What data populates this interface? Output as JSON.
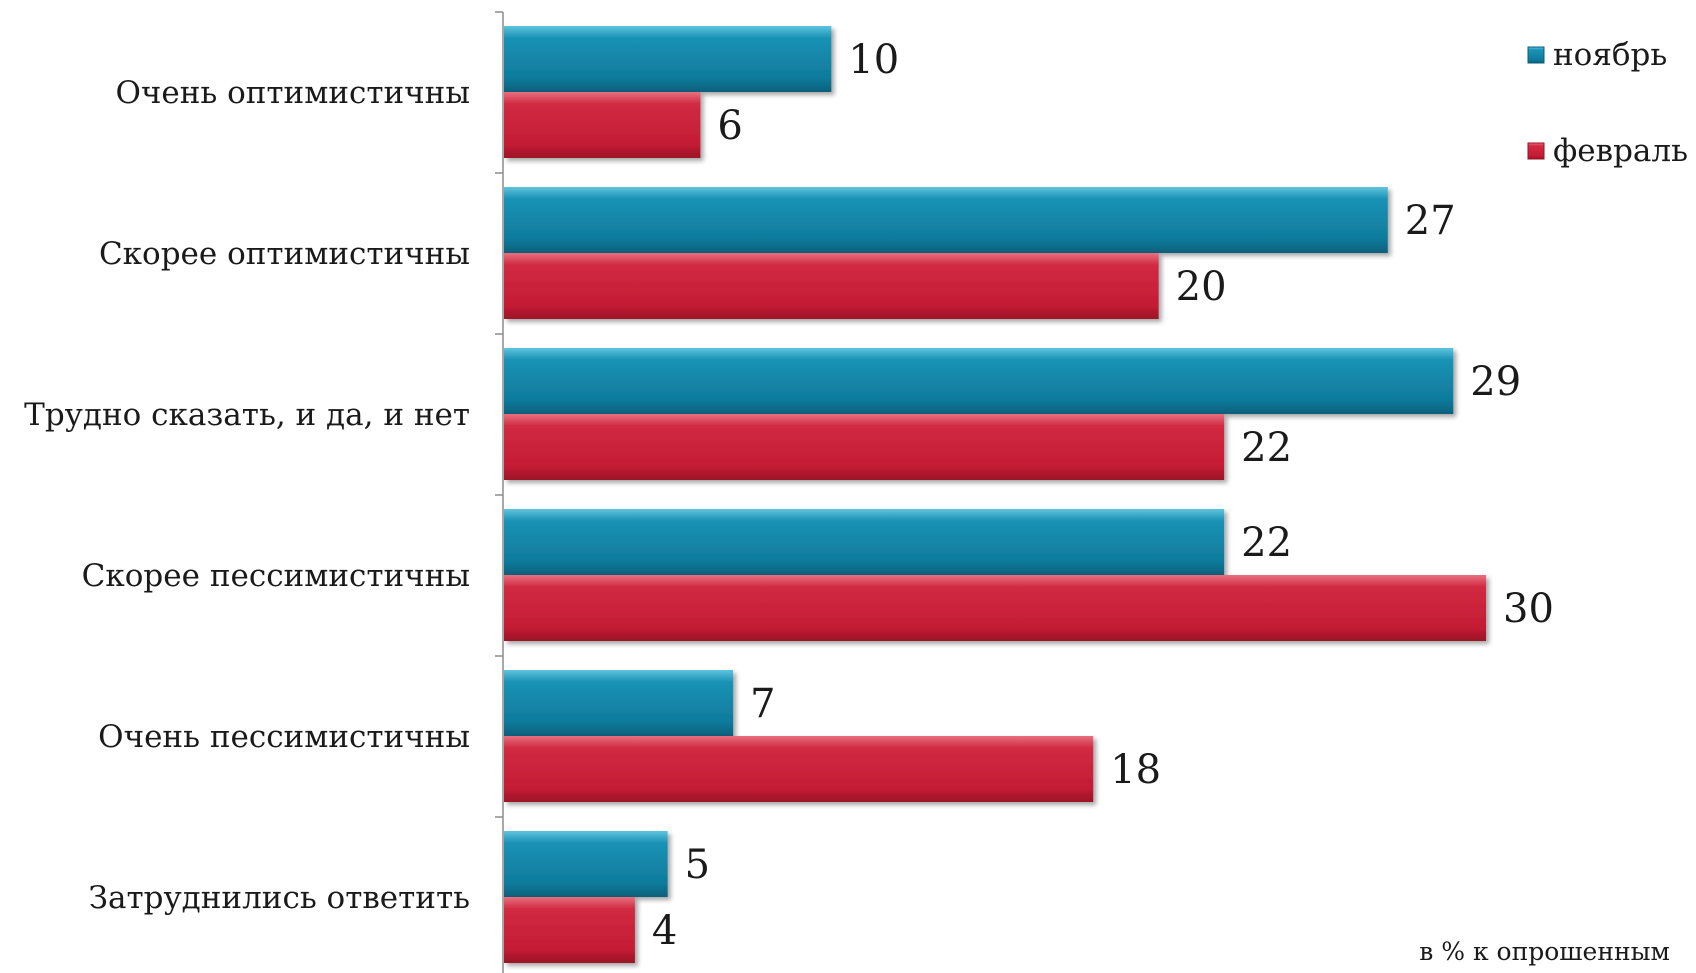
{
  "chart_data": {
    "type": "bar",
    "orientation": "horizontal",
    "categories": [
      "Очень оптимистичны",
      "Скорее оптимистичны",
      "Трудно сказать, и да, и нет",
      "Скорее пессимистичны",
      "Очень пессимистичны",
      "Затруднились ответить"
    ],
    "series": [
      {
        "name": "ноябрь",
        "color": "#1181a3",
        "values": [
          10,
          27,
          29,
          22,
          7,
          5
        ]
      },
      {
        "name": "февраль",
        "color": "#c81f37",
        "values": [
          6,
          20,
          22,
          30,
          18,
          4
        ]
      }
    ],
    "xlim": [
      0,
      30
    ],
    "grid": false,
    "data_labels": true,
    "legend_position": "top-right",
    "note": "в % к опрошенным"
  }
}
